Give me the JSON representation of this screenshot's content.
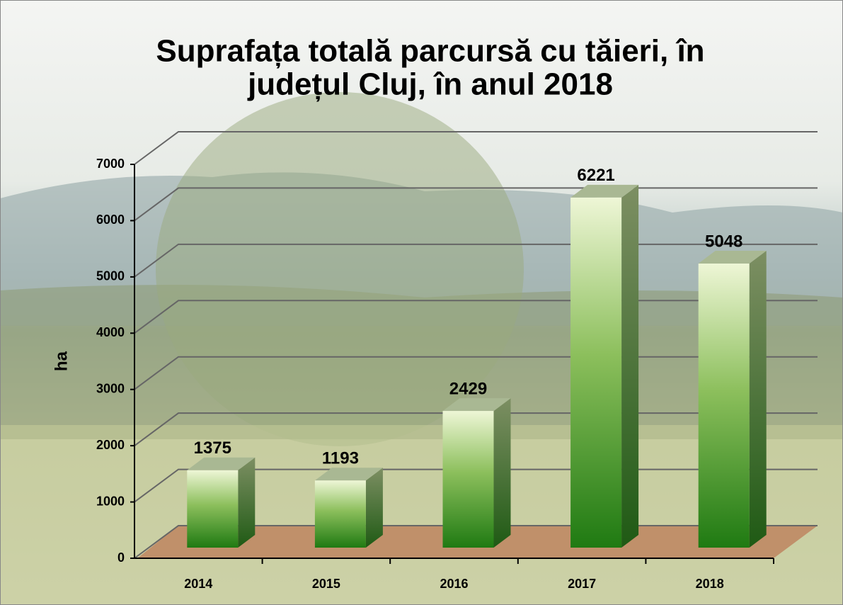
{
  "chart_data": {
    "type": "bar3d",
    "title": [
      "Suprafața totală parcursă cu tăieri, în",
      "județul Cluj, în anul 2018"
    ],
    "y_label": "ha",
    "categories": [
      "2014",
      "2015",
      "2016",
      "2017",
      "2018"
    ],
    "values": [
      1375,
      1193,
      2429,
      6221,
      5048
    ],
    "color": "#1f7a12",
    "ylim": [
      0,
      7000
    ],
    "yticks": [
      0,
      1000,
      2000,
      3000,
      4000,
      5000,
      6000,
      7000
    ],
    "grid": true
  }
}
